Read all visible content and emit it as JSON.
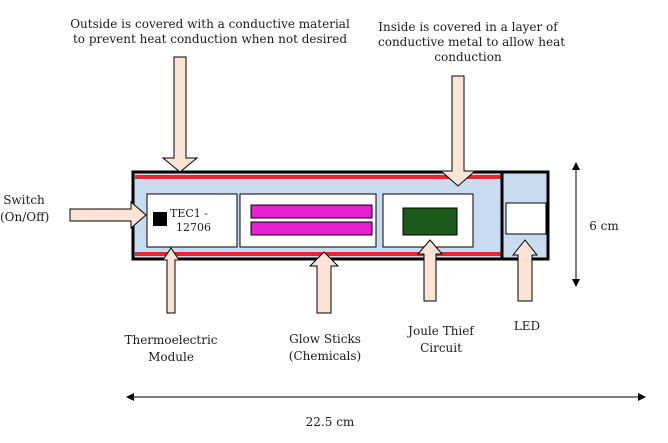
{
  "annotations": {
    "outside_line1": "Outside is covered with a conductive material",
    "outside_line2": "to prevent heat conduction when not desired",
    "inside_line1": "Inside is covered in a layer of",
    "inside_line2": "conductive metal to allow heat",
    "inside_line3": "conduction"
  },
  "labels": {
    "switch_line1": "Switch",
    "switch_line2": "(On/Off)",
    "tec_line1": "TEC1 -",
    "tec_line2": "12706",
    "thermo_line1": "Thermoelectric",
    "thermo_line2": "Module",
    "glow_line1": "Glow Sticks",
    "glow_line2": "(Chemicals)",
    "joule_line1": "Joule Thief",
    "joule_line2": "Circuit",
    "led": "LED"
  },
  "dimensions": {
    "height": "6 cm",
    "length": "22.5 cm"
  },
  "colors": {
    "outer_border": "#000000",
    "heat_layer": "#e8262d",
    "inner_fill": "#c7dcf0",
    "glow_stick": "#e81ed2",
    "circuit_board": "#1c5a1c",
    "arrow_fill": "#fbe4d5",
    "tec_chip": "#000000"
  }
}
